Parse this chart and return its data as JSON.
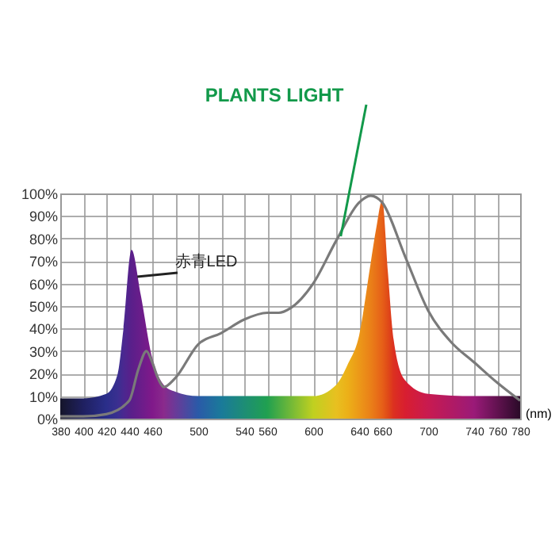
{
  "chart_data": {
    "type": "area",
    "xlabel": "(nm)",
    "xlim": [
      380,
      780
    ],
    "ylim": [
      0,
      100
    ],
    "xticks": [
      380,
      400,
      420,
      440,
      460,
      {
        "value": 480,
        "label": null
      },
      500,
      {
        "value": 520,
        "label": null
      },
      540,
      560,
      {
        "value": 580,
        "label": null
      },
      600,
      {
        "value": 620,
        "label": null
      },
      640,
      660,
      {
        "value": 680,
        "label": null
      },
      700,
      {
        "value": 720,
        "label": null
      },
      740,
      760,
      780
    ],
    "yticks": [
      {
        "value": 0,
        "label": "0%"
      },
      {
        "value": 10,
        "label": "10%"
      },
      {
        "value": 20,
        "label": "20%"
      },
      {
        "value": 30,
        "label": "30%"
      },
      {
        "value": 40,
        "label": "40%"
      },
      {
        "value": 50,
        "label": "50%"
      },
      {
        "value": 60,
        "label": "60%"
      },
      {
        "value": 70,
        "label": "70%"
      },
      {
        "value": 80,
        "label": "80%"
      },
      {
        "value": 90,
        "label": "90%"
      },
      {
        "value": 100,
        "label": "100%"
      }
    ],
    "grid": true,
    "series": [
      {
        "x": [
          380,
          400,
          420,
          430,
          435,
          442,
          450,
          460,
          470,
          480,
          500,
          520,
          560,
          600,
          620,
          630,
          640,
          650,
          655,
          660,
          665,
          670,
          680,
          700,
          740,
          780
        ],
        "values": [
          9,
          9,
          11,
          20,
          40,
          75,
          55,
          27,
          15,
          12,
          10,
          10,
          10,
          10,
          15,
          24,
          37,
          69,
          85,
          97,
          65,
          35,
          17,
          11,
          10,
          10
        ],
        "colors": [
          "#15152a",
          "#1f2060",
          "#2a2e8a",
          "#3a2f90",
          "#4a2890",
          "#5a1f8a",
          "#6a1d8a",
          "#80198a",
          "#8a2a8c",
          "#6a3a98",
          "#2a5aa8",
          "#1a7a9a",
          "#20a050",
          "#c0d020",
          "#e8c020",
          "#ecb018",
          "#ec9818",
          "#ea8018",
          "#e87018",
          "#e66018",
          "#e04a18",
          "#dc3020",
          "#d81e30",
          "#c81a50",
          "#9a1a78",
          "#2a0a28"
        ]
      },
      {
        "type": "line",
        "color": "#7a7a7a",
        "x": [
          380,
          400,
          420,
          440,
          448,
          455,
          460,
          465,
          470,
          480,
          500,
          520,
          540,
          560,
          570,
          580,
          600,
          620,
          640,
          650,
          660,
          680,
          700,
          720,
          740,
          760,
          780
        ],
        "values": [
          1,
          1,
          2,
          8,
          22,
          30,
          25,
          18,
          14,
          18,
          33,
          38,
          44,
          47,
          47,
          49,
          60,
          79,
          96,
          99,
          96,
          72,
          48,
          34,
          25,
          16,
          8
        ]
      }
    ],
    "annotations": [
      {
        "text": "PLANTS LIGHT",
        "x": 624,
        "y": 81
      },
      {
        "text": "赤青LED",
        "x": 447,
        "y": 63
      }
    ]
  }
}
